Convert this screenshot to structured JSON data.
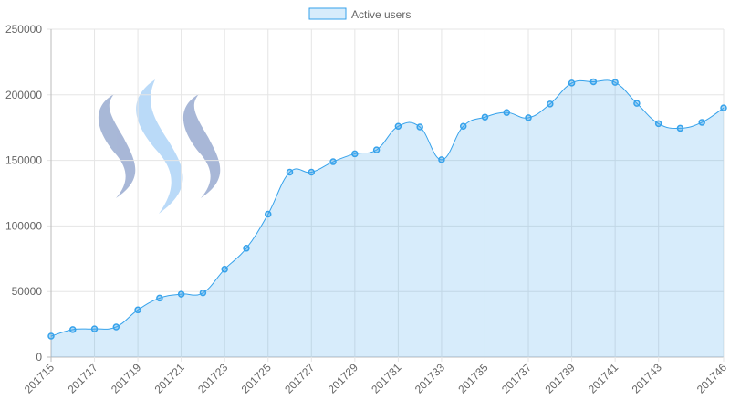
{
  "chart_data": {
    "type": "area",
    "categories": [
      "201715",
      null,
      "201717",
      null,
      "201719",
      null,
      "201721",
      null,
      "201723",
      null,
      "201725",
      null,
      "201727",
      null,
      "201729",
      null,
      "201731",
      null,
      "201733",
      null,
      "201735",
      null,
      "201737",
      null,
      "201739",
      null,
      "201741",
      null,
      "201743",
      null,
      null,
      "201746"
    ],
    "series": [
      {
        "name": "Active users",
        "color": "#36a2eb",
        "values": [
          16000,
          21000,
          21500,
          23000,
          36000,
          45000,
          48000,
          49000,
          67000,
          83000,
          109000,
          141000,
          141000,
          149000,
          155000,
          158000,
          176000,
          175500,
          150500,
          176000,
          183000,
          186500,
          182500,
          193000,
          209000,
          210000,
          209500,
          193500,
          178000,
          174500,
          179000,
          190000
        ]
      }
    ],
    "ylim": [
      0,
      250000
    ],
    "yticks": [
      0,
      50000,
      100000,
      150000,
      200000,
      250000
    ],
    "grid": true,
    "legend": "top"
  }
}
